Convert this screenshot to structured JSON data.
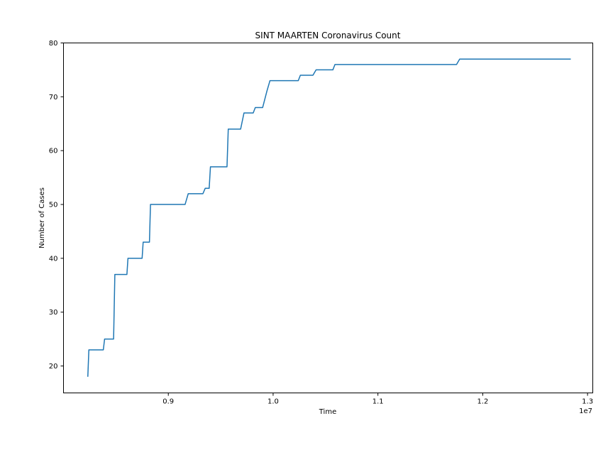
{
  "chart_data": {
    "type": "line",
    "title": "SINT MAARTEN Coronavirus Count",
    "xlabel": "Time",
    "ylabel": "Number of Cases",
    "x_offset_label": "1e7",
    "xlim": [
      0.8,
      1.305
    ],
    "ylim": [
      15,
      80
    ],
    "x_ticks": [
      0.9,
      1.0,
      1.1,
      1.2,
      1.3
    ],
    "x_tick_labels": [
      "0.9",
      "1.0",
      "1.1",
      "1.2",
      "1.3"
    ],
    "y_ticks": [
      20,
      30,
      40,
      50,
      60,
      70,
      80
    ],
    "y_tick_labels": [
      "20",
      "30",
      "40",
      "50",
      "60",
      "70",
      "80"
    ],
    "grid": false,
    "color": "#1f77b4",
    "series": [
      {
        "x": [
          0.8232,
          0.8242,
          0.838,
          0.8392,
          0.8478,
          0.849,
          0.8605,
          0.8615,
          0.875,
          0.876,
          0.882,
          0.883,
          0.916,
          0.919,
          0.933,
          0.9352,
          0.939,
          0.9402,
          0.956,
          0.9572,
          0.969,
          0.9722,
          0.981,
          0.983,
          0.99,
          0.994,
          0.997,
          1.024,
          1.026,
          1.038,
          1.041,
          1.057,
          1.059,
          1.175,
          1.178,
          1.284
        ],
        "y": [
          18,
          23,
          23,
          25,
          25,
          37,
          37,
          40,
          40,
          43,
          43,
          50,
          50,
          52,
          52,
          53,
          53,
          57,
          57,
          64,
          64,
          67,
          67,
          68,
          68,
          71,
          73,
          73,
          74,
          74,
          75,
          75,
          76,
          76,
          77,
          77
        ]
      }
    ]
  }
}
